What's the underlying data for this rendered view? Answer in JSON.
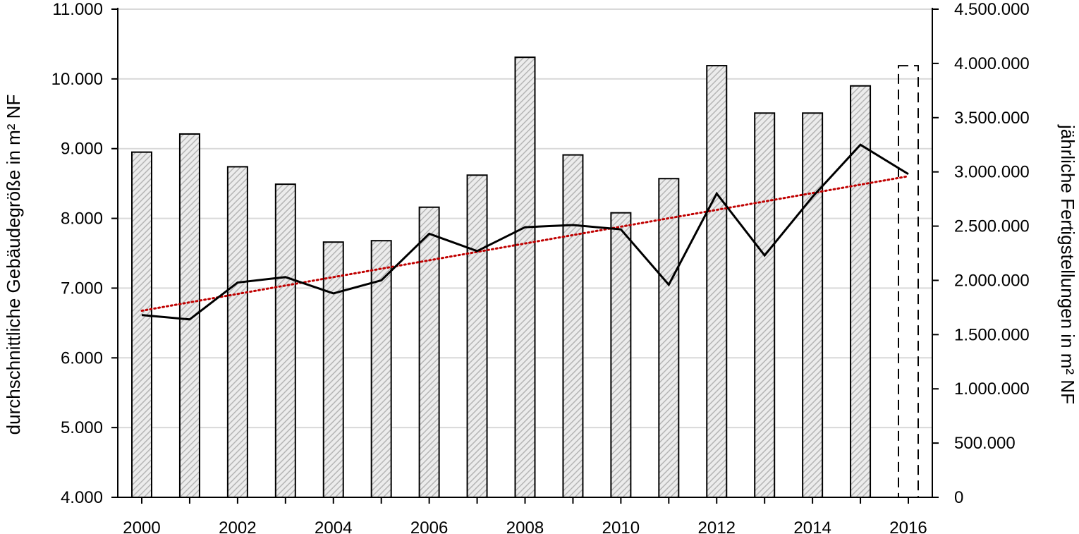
{
  "chart_data": {
    "type": "bar",
    "title": "",
    "xlabel": "",
    "x_ticks": [
      "2000",
      "2002",
      "2004",
      "2006",
      "2008",
      "2010",
      "2012",
      "2014",
      "2016"
    ],
    "years": [
      2000,
      2001,
      2002,
      2003,
      2004,
      2005,
      2006,
      2007,
      2008,
      2009,
      2010,
      2011,
      2012,
      2013,
      2014,
      2015,
      2016
    ],
    "left_axis": {
      "label": "durchschnittliche Gebäudegröße in m² NF",
      "ylim": [
        4000,
        11000
      ],
      "ticks": [
        4000,
        5000,
        6000,
        7000,
        8000,
        9000,
        10000,
        11000
      ],
      "tick_labels": [
        "4.000",
        "5.000",
        "6.000",
        "7.000",
        "8.000",
        "9.000",
        "10.000",
        "11.000"
      ]
    },
    "right_axis": {
      "label": "jährliche Fertigstellungen in m² NF",
      "ylim": [
        0,
        4500000
      ],
      "ticks": [
        0,
        500000,
        1000000,
        1500000,
        2000000,
        2500000,
        3000000,
        3500000,
        4000000,
        4500000
      ],
      "tick_labels": [
        "0",
        "500.000",
        "1.000.000",
        "1.500.000",
        "2.000.000",
        "2.500.000",
        "3.000.000",
        "3.500.000",
        "4.000.000",
        "4.500.000"
      ]
    },
    "series": [
      {
        "kind": "bar",
        "axis": "left",
        "color": "#d9d9d9",
        "pattern": "diagonal-hatch",
        "values": [
          8950,
          9210,
          8740,
          8490,
          7660,
          7680,
          8160,
          8620,
          10310,
          8910,
          8080,
          8570,
          10190,
          9510,
          9510,
          9900,
          null
        ]
      },
      {
        "kind": "bar",
        "axis": "left",
        "style": "dashed-outline",
        "values": [
          null,
          null,
          null,
          null,
          null,
          null,
          null,
          null,
          null,
          null,
          null,
          null,
          null,
          null,
          null,
          null,
          10190
        ]
      },
      {
        "kind": "line",
        "axis": "right",
        "color": "#000000",
        "values": [
          1680000,
          1640000,
          1980000,
          2030000,
          1880000,
          2000000,
          2430000,
          2270000,
          2490000,
          2510000,
          2470000,
          1960000,
          2800000,
          2230000,
          2770000,
          3250000,
          2980000
        ]
      },
      {
        "kind": "trendline",
        "axis": "right",
        "color": "#c00000",
        "style": "dotted",
        "start": 1720000,
        "end": 2960000
      }
    ],
    "grid": true,
    "legend": "none"
  }
}
